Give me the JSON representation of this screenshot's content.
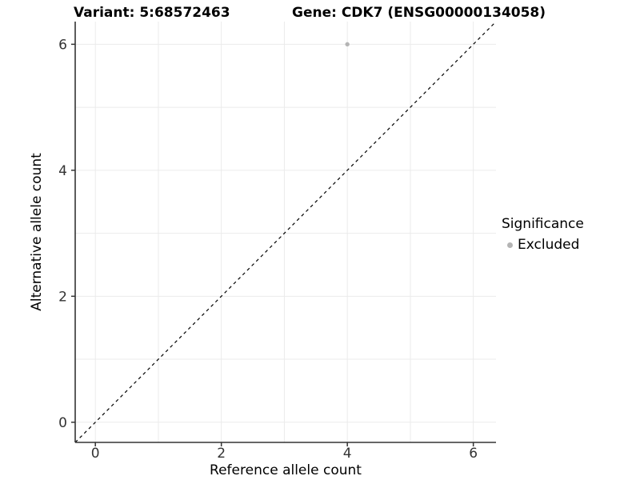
{
  "titles": {
    "left": "Variant: 5:68572463",
    "right": "Gene: CDK7 (ENSG00000134058)"
  },
  "chart_data": {
    "type": "scatter",
    "xlabel": "Reference allele count",
    "ylabel": "Alternative allele count",
    "xticks": [
      0,
      2,
      4,
      6
    ],
    "yticks": [
      0,
      2,
      4,
      6
    ],
    "xlim": [
      -0.32,
      6.36
    ],
    "ylim": [
      -0.32,
      6.36
    ],
    "gridlines": [
      0,
      1,
      2,
      3,
      4,
      5,
      6
    ],
    "grid": true,
    "identity_line": {
      "slope": 1,
      "intercept": 0,
      "style": "dashed",
      "color": "#000000"
    },
    "series": [
      {
        "name": "Excluded",
        "color": "#b4b4b4",
        "points": [
          {
            "x": 4,
            "y": 6
          }
        ]
      }
    ],
    "legend_position": "right"
  },
  "legend": {
    "title": "Significance",
    "items": [
      {
        "label": "Excluded",
        "color": "#b4b4b4"
      }
    ]
  },
  "colors": {
    "grid": "#ebebeb",
    "axis": "#333333",
    "tick_label": "#333333",
    "dashed_line": "#000000",
    "point": "#b4b4b4",
    "background": "#ffffff"
  }
}
